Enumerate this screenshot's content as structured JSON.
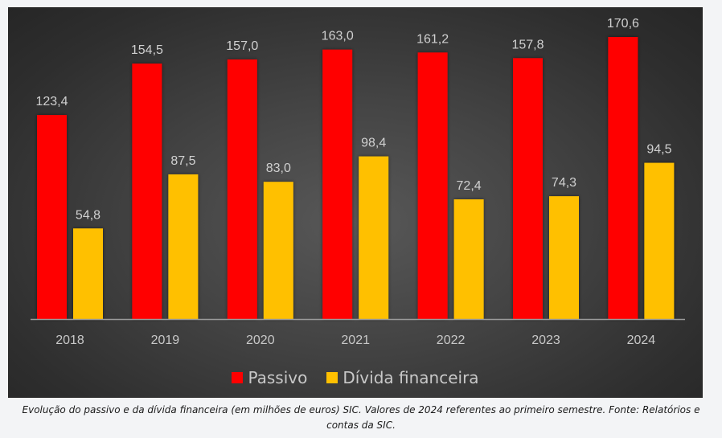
{
  "chart_data": {
    "type": "bar",
    "title": "",
    "xlabel": "",
    "ylabel": "",
    "categories": [
      "2018",
      "2019",
      "2020",
      "2021",
      "2022",
      "2023",
      "2024"
    ],
    "series": [
      {
        "name": "Passivo",
        "color": "#ff0000",
        "values": [
          123.4,
          154.5,
          157.0,
          163.0,
          161.2,
          157.8,
          170.6
        ],
        "labels": [
          "123,4",
          "154,5",
          "157,0",
          "163,0",
          "161,2",
          "157,8",
          "170,6"
        ]
      },
      {
        "name": "Dívida financeira",
        "color": "#ffc000",
        "values": [
          54.8,
          87.5,
          83.0,
          98.4,
          72.4,
          74.3,
          94.5
        ],
        "labels": [
          "54,8",
          "87,5",
          "83,0",
          "98,4",
          "72,4",
          "74,3",
          "94,5"
        ]
      }
    ],
    "ylim": [
      0,
      170.6
    ],
    "grid": false,
    "legend_position": "bottom"
  },
  "caption": {
    "line1": "Evolução do passivo e da dívida financeira (em milhões de euros) SIC. Valores de 2024 referentes ao primeiro semestre. Fonte: Relatórios e",
    "line2": "contas da SIC."
  }
}
